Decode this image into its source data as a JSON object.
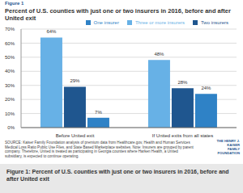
{
  "chart_data": {
    "type": "bar",
    "figure_label": "Figure 1",
    "title": "Percent of U.S. counties with just one or two insurers in 2016, before and after United exit",
    "categories": [
      "Before United exit",
      "If United exits from all states"
    ],
    "series": [
      {
        "name": "Three or more insurers",
        "color": "#67b1e6",
        "values": [
          64,
          48
        ],
        "value_labels": [
          "64%",
          "48%"
        ]
      },
      {
        "name": "Two insurers",
        "color": "#1f568f",
        "values": [
          29,
          28
        ],
        "value_labels": [
          "29%",
          "28%"
        ]
      },
      {
        "name": "One insurer",
        "color": "#2f82c6",
        "values": [
          7,
          24
        ],
        "value_labels": [
          "7%",
          "24%"
        ]
      }
    ],
    "ylim": [
      0,
      70
    ],
    "yticks": [
      {
        "value": 0,
        "label": "0%"
      },
      {
        "value": 10,
        "label": "10%"
      },
      {
        "value": 20,
        "label": "20%"
      },
      {
        "value": 30,
        "label": "30%"
      },
      {
        "value": 40,
        "label": "40%"
      },
      {
        "value": 50,
        "label": "50%"
      },
      {
        "value": 60,
        "label": "60%"
      },
      {
        "value": 70,
        "label": "70%"
      }
    ],
    "grid": true,
    "legend": "top-right",
    "data_labels": true,
    "source": "SOURCE: Kaiser Family Foundation analysis of premium data from Healthcare.gov, Health and Human Services Medical Loss Ratio Public Use Files, and State Based Marketplace websites. Note: Insurers are grouped by parent company. Therefore, United is treated as participating in Georgia counties where Harken Health, a United subsidiary, is expected to continue operating.",
    "logo": [
      "THE HENRY J.",
      "KAISER",
      "FAMILY",
      "FOUNDATION"
    ],
    "caption": "Figure 1: Percent of U.S. counties with just one or two insurers in 2016, before and after United exit"
  }
}
